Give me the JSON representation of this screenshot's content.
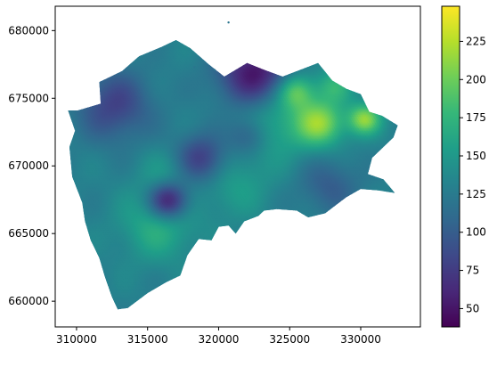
{
  "map": {
    "type": "hexbin-choropleth",
    "colormap": "viridis",
    "colormap_stops": [
      "#440154",
      "#482878",
      "#3e4989",
      "#31688e",
      "#26828e",
      "#1f9e89",
      "#35b779",
      "#6ece58",
      "#b5de2b",
      "#fde725"
    ],
    "value_range": [
      38,
      248
    ],
    "x_ticks": [
      "310000",
      "315000",
      "320000",
      "325000",
      "330000"
    ],
    "x_tick_values": [
      310000,
      315000,
      320000,
      325000,
      330000
    ],
    "y_ticks": [
      "660000",
      "665000",
      "670000",
      "675000",
      "680000"
    ],
    "y_tick_values": [
      660000,
      665000,
      670000,
      675000,
      680000
    ],
    "x_range": [
      308500,
      334200
    ],
    "y_range": [
      658100,
      681800
    ],
    "colorbar_ticks": [
      "50",
      "75",
      "100",
      "125",
      "150",
      "175",
      "200",
      "225"
    ],
    "colorbar_tick_values": [
      50,
      75,
      100,
      125,
      150,
      175,
      200,
      225
    ],
    "region_outline_xy": [
      [
        310100,
        674100
      ],
      [
        311700,
        674600
      ],
      [
        311600,
        676200
      ],
      [
        313200,
        677000
      ],
      [
        314400,
        678100
      ],
      [
        316000,
        678800
      ],
      [
        317000,
        679300
      ],
      [
        318000,
        678700
      ],
      [
        319300,
        677500
      ],
      [
        320400,
        676600
      ],
      [
        322000,
        677600
      ],
      [
        323200,
        677100
      ],
      [
        324500,
        676600
      ],
      [
        326000,
        677200
      ],
      [
        327000,
        677600
      ],
      [
        328000,
        676300
      ],
      [
        329000,
        675700
      ],
      [
        330000,
        675300
      ],
      [
        330600,
        674000
      ],
      [
        331500,
        673700
      ],
      [
        332600,
        673000
      ],
      [
        332300,
        672100
      ],
      [
        331200,
        671000
      ],
      [
        330800,
        670600
      ],
      [
        330500,
        669400
      ],
      [
        331600,
        669000
      ],
      [
        332400,
        668000
      ],
      [
        331200,
        668200
      ],
      [
        330000,
        668300
      ],
      [
        329000,
        667700
      ],
      [
        327500,
        666500
      ],
      [
        326300,
        666200
      ],
      [
        325500,
        666700
      ],
      [
        324100,
        666800
      ],
      [
        323200,
        666700
      ],
      [
        322800,
        666300
      ],
      [
        321800,
        665900
      ],
      [
        321200,
        665000
      ],
      [
        320700,
        665600
      ],
      [
        320000,
        665500
      ],
      [
        319500,
        664500
      ],
      [
        318600,
        664600
      ],
      [
        317800,
        663400
      ],
      [
        317300,
        661900
      ],
      [
        316300,
        661400
      ],
      [
        315000,
        660600
      ],
      [
        313600,
        659500
      ],
      [
        312900,
        659400
      ],
      [
        312500,
        660300
      ],
      [
        312000,
        661800
      ],
      [
        311600,
        663200
      ],
      [
        311000,
        664500
      ],
      [
        310600,
        665900
      ],
      [
        310400,
        667300
      ],
      [
        309700,
        669200
      ],
      [
        309500,
        671400
      ],
      [
        309900,
        672600
      ],
      [
        309400,
        674100
      ]
    ],
    "value_field": {
      "base": 130,
      "features": [
        [
          322600,
          676800,
          1800,
          -85
        ],
        [
          316500,
          667500,
          1000,
          -95
        ],
        [
          318800,
          670500,
          1300,
          -60
        ],
        [
          312700,
          674500,
          1800,
          -50
        ],
        [
          327800,
          668600,
          1500,
          -30
        ],
        [
          322100,
          672300,
          1000,
          -40
        ],
        [
          315800,
          665700,
          1800,
          40
        ],
        [
          324000,
          673500,
          2000,
          40
        ],
        [
          325500,
          675600,
          900,
          60
        ],
        [
          327200,
          673200,
          1200,
          75
        ],
        [
          330300,
          673500,
          800,
          80
        ],
        [
          328200,
          676000,
          900,
          40
        ],
        [
          316600,
          669300,
          1400,
          25
        ],
        [
          321100,
          668700,
          1700,
          25
        ]
      ]
    },
    "outlier_points": [
      [
        320700,
        680600
      ],
      [
        318300,
        677300
      ],
      [
        319700,
        677100
      ]
    ]
  }
}
